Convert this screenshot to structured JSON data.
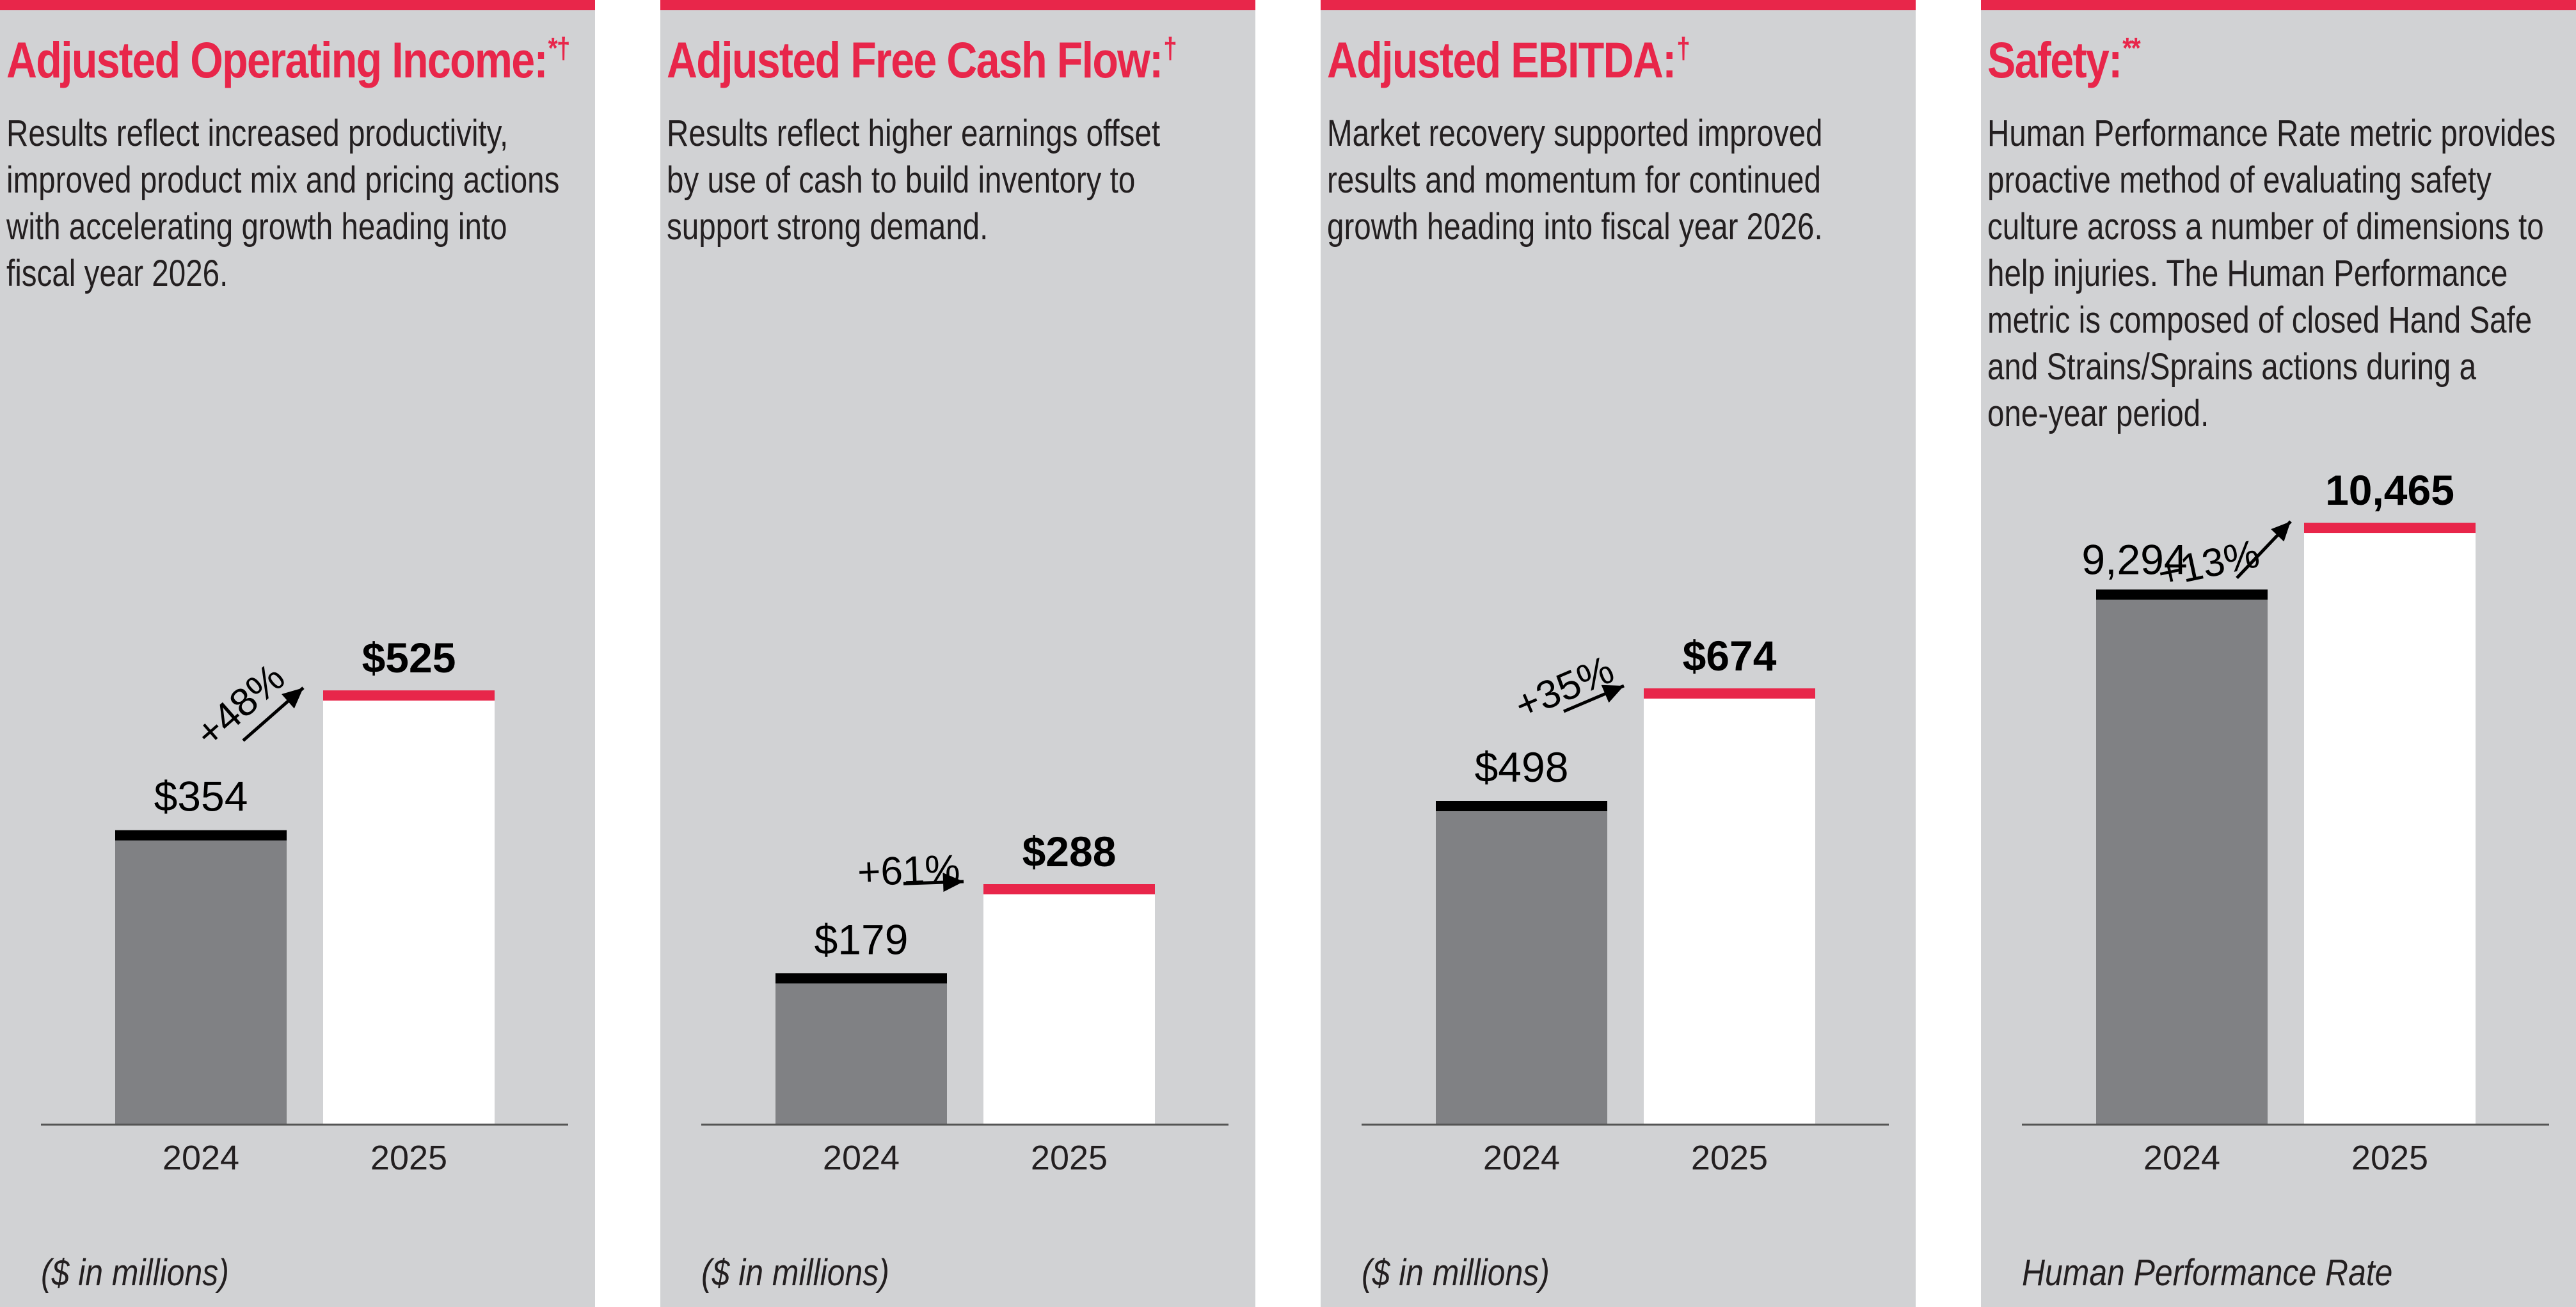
{
  "colors": {
    "accent": "#e8264a",
    "panel_background": "#d1d2d4",
    "bar_2024": "#808184",
    "bar_2025": "#ffffff",
    "cap_2024": "#000000",
    "text": "#231f20"
  },
  "panels": [
    {
      "title": "Adjusted Operating Income:",
      "title_marks": "*†",
      "description": "Results reflect increased productivity,\nimproved product mix and pricing actions\nwith accelerating growth heading into\nfiscal year 2026.",
      "footnote": "($ in millions)"
    },
    {
      "title": "Adjusted Free Cash Flow:",
      "title_marks": "†",
      "description": "Results reflect higher earnings offset\nby use of cash to build inventory to\nsupport strong demand.",
      "footnote": "($ in millions)"
    },
    {
      "title": "Adjusted EBITDA:",
      "title_marks": "†",
      "description": "Market recovery supported improved\nresults and momentum for continued\ngrowth heading into fiscal year 2026.",
      "footnote": "($ in millions)"
    },
    {
      "title": "Safety:",
      "title_marks": "**",
      "description": "Human Performance Rate metric provides\nproactive method of evaluating safety\nculture across a number of dimensions to\nhelp injuries. The Human Performance\nmetric is composed of closed Hand Safe\nand Strains/Sprains actions during a\none-year period.",
      "footnote": "Human Performance Rate"
    }
  ],
  "chart_data": [
    {
      "type": "bar",
      "title": "Adjusted Operating Income",
      "units": "$ in millions",
      "categories": [
        "2024",
        "2025"
      ],
      "values": [
        354,
        525
      ],
      "value_labels": [
        "$354",
        "$525"
      ],
      "change_label": "+48%",
      "ylim": [
        0,
        900
      ]
    },
    {
      "type": "bar",
      "title": "Adjusted Free Cash Flow",
      "units": "$ in millions",
      "categories": [
        "2024",
        "2025"
      ],
      "values": [
        179,
        288
      ],
      "value_labels": [
        "$179",
        "$288"
      ],
      "change_label": "+61%",
      "ylim": [
        0,
        900
      ]
    },
    {
      "type": "bar",
      "title": "Adjusted EBITDA",
      "units": "$ in millions",
      "categories": [
        "2024",
        "2025"
      ],
      "values": [
        498,
        674
      ],
      "value_labels": [
        "$498",
        "$674"
      ],
      "change_label": "+35%",
      "ylim": [
        0,
        1150
      ]
    },
    {
      "type": "bar",
      "title": "Safety",
      "units": "Human Performance Rate",
      "categories": [
        "2024",
        "2025"
      ],
      "values": [
        9294,
        10465
      ],
      "value_labels": [
        "9,294",
        "10,465"
      ],
      "change_label": "+13%",
      "ylim": [
        0,
        12900
      ]
    }
  ]
}
